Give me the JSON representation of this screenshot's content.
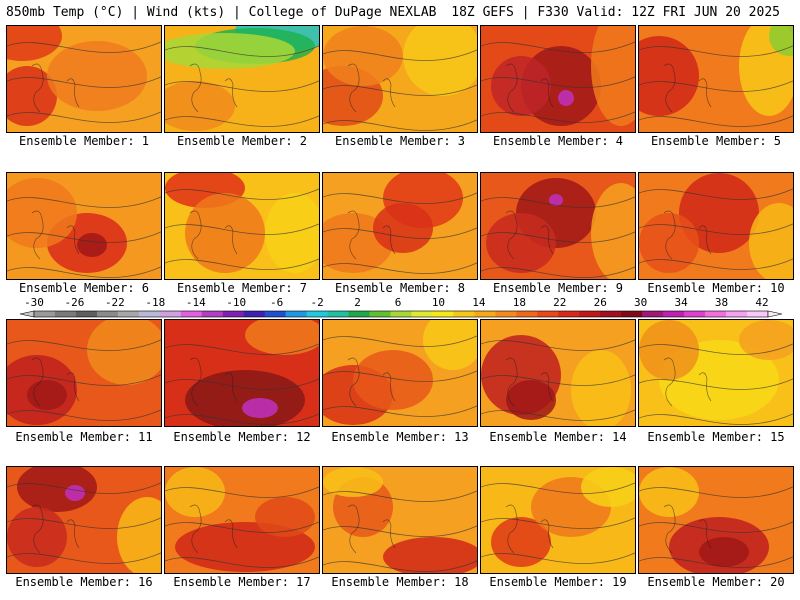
{
  "header": {
    "left": "850mb Temp (°C) | Wind (kts) | College of DuPage NEXLAB",
    "right": "18Z GEFS | F330 Valid: 12Z FRI JUN 20 2025"
  },
  "caption_prefix": "Ensemble Member:",
  "members": [
    {
      "label": "Ensemble Member: 1",
      "base": "#f5a020",
      "blobs": [
        [
          "#e03a18",
          15,
          10,
          40,
          25
        ],
        [
          "#d9301a",
          20,
          70,
          30,
          30
        ],
        [
          "#f07a1e",
          90,
          50,
          50,
          35
        ]
      ]
    },
    {
      "label": "Ensemble Member: 2",
      "base": "#f7b21a",
      "blobs": [
        [
          "#1ec2c8",
          120,
          5,
          50,
          20
        ],
        [
          "#20b050",
          90,
          20,
          60,
          18
        ],
        [
          "#a8d838",
          60,
          25,
          70,
          18
        ],
        [
          "#f08a1c",
          30,
          80,
          40,
          25
        ]
      ]
    },
    {
      "label": "Ensemble Member: 3",
      "base": "#f5a81c",
      "blobs": [
        [
          "#e04a18",
          20,
          70,
          40,
          30
        ],
        [
          "#f0801c",
          40,
          30,
          40,
          30
        ],
        [
          "#f8c818",
          120,
          30,
          40,
          40
        ]
      ]
    },
    {
      "label": "Ensemble Member: 4",
      "base": "#e44a18",
      "blobs": [
        [
          "#a01818",
          80,
          60,
          40,
          40
        ],
        [
          "#c02428",
          40,
          60,
          30,
          30
        ],
        [
          "#c030c0",
          85,
          72,
          8,
          8
        ],
        [
          "#f07a1c",
          140,
          40,
          30,
          60
        ]
      ]
    },
    {
      "label": "Ensemble Member: 5",
      "base": "#f07a1c",
      "blobs": [
        [
          "#d02818",
          20,
          50,
          40,
          40
        ],
        [
          "#f8c818",
          130,
          40,
          30,
          50
        ],
        [
          "#8ccc30",
          150,
          10,
          20,
          20
        ]
      ]
    },
    {
      "label": "Ensemble Member: 6",
      "base": "#f59820",
      "blobs": [
        [
          "#d82a1a",
          80,
          70,
          40,
          30
        ],
        [
          "#a01818",
          85,
          72,
          15,
          12
        ],
        [
          "#f0781c",
          30,
          40,
          40,
          35
        ]
      ]
    },
    {
      "label": "Ensemble Member: 7",
      "base": "#f8c018",
      "blobs": [
        [
          "#e03018",
          40,
          15,
          40,
          20
        ],
        [
          "#f0781c",
          60,
          60,
          40,
          40
        ],
        [
          "#f8d018",
          130,
          60,
          30,
          40
        ]
      ]
    },
    {
      "label": "Ensemble Member: 8",
      "base": "#f5a020",
      "blobs": [
        [
          "#e03818",
          100,
          25,
          40,
          30
        ],
        [
          "#f0781c",
          30,
          70,
          40,
          30
        ],
        [
          "#d83018",
          80,
          55,
          30,
          25
        ]
      ]
    },
    {
      "label": "Ensemble Member: 9",
      "base": "#e8581a",
      "blobs": [
        [
          "#a01818",
          75,
          40,
          40,
          35
        ],
        [
          "#c030c0",
          75,
          27,
          7,
          6
        ],
        [
          "#c82a20",
          40,
          70,
          35,
          30
        ],
        [
          "#f5a020",
          140,
          60,
          30,
          50
        ]
      ]
    },
    {
      "label": "Ensemble Member: 10",
      "base": "#f07a1c",
      "blobs": [
        [
          "#d02818",
          80,
          40,
          40,
          40
        ],
        [
          "#e8501a",
          30,
          70,
          30,
          30
        ],
        [
          "#f8b818",
          140,
          70,
          30,
          40
        ]
      ]
    },
    {
      "label": "Ensemble Member: 11",
      "base": "#e8581a",
      "blobs": [
        [
          "#c02020",
          30,
          70,
          40,
          35
        ],
        [
          "#a01818",
          40,
          75,
          20,
          15
        ],
        [
          "#f08a1c",
          120,
          30,
          40,
          35
        ]
      ]
    },
    {
      "label": "Ensemble Member: 12",
      "base": "#d83018",
      "blobs": [
        [
          "#8a1818",
          80,
          80,
          60,
          30
        ],
        [
          "#c030c0",
          95,
          88,
          18,
          10
        ],
        [
          "#f07a1c",
          120,
          15,
          40,
          20
        ]
      ]
    },
    {
      "label": "Ensemble Member: 13",
      "base": "#f5a020",
      "blobs": [
        [
          "#d83018",
          30,
          75,
          40,
          30
        ],
        [
          "#e8581a",
          70,
          60,
          40,
          30
        ],
        [
          "#f8c818",
          130,
          20,
          30,
          30
        ]
      ]
    },
    {
      "label": "Ensemble Member: 14",
      "base": "#f5a020",
      "blobs": [
        [
          "#c02020",
          40,
          55,
          40,
          40
        ],
        [
          "#a01818",
          50,
          80,
          25,
          20
        ],
        [
          "#f8c018",
          120,
          70,
          30,
          40
        ]
      ]
    },
    {
      "label": "Ensemble Member: 15",
      "base": "#f8c018",
      "blobs": [
        [
          "#f8d818",
          80,
          60,
          60,
          40
        ],
        [
          "#f0901c",
          30,
          30,
          30,
          30
        ],
        [
          "#f5a020",
          130,
          20,
          30,
          20
        ]
      ]
    },
    {
      "label": "Ensemble Member: 16",
      "base": "#e8581a",
      "blobs": [
        [
          "#a01818",
          50,
          20,
          40,
          25
        ],
        [
          "#c030c0",
          68,
          26,
          10,
          8
        ],
        [
          "#c82a20",
          30,
          70,
          30,
          30
        ],
        [
          "#f8b818",
          140,
          70,
          30,
          40
        ]
      ]
    },
    {
      "label": "Ensemble Member: 17",
      "base": "#f07a1c",
      "blobs": [
        [
          "#d02818",
          80,
          80,
          70,
          25
        ],
        [
          "#f8b818",
          30,
          25,
          30,
          25
        ],
        [
          "#e04a18",
          120,
          50,
          30,
          20
        ]
      ]
    },
    {
      "label": "Ensemble Member: 18",
      "base": "#f5a020",
      "blobs": [
        [
          "#d02818",
          110,
          90,
          50,
          20
        ],
        [
          "#e8581a",
          40,
          40,
          30,
          30
        ],
        [
          "#f8c018",
          30,
          15,
          30,
          15
        ]
      ]
    },
    {
      "label": "Ensemble Member: 19",
      "base": "#f8b818",
      "blobs": [
        [
          "#e03818",
          40,
          75,
          30,
          25
        ],
        [
          "#f0781c",
          90,
          40,
          40,
          30
        ],
        [
          "#f8d018",
          130,
          20,
          30,
          20
        ]
      ]
    },
    {
      "label": "Ensemble Member: 20",
      "base": "#f07a1c",
      "blobs": [
        [
          "#c02020",
          80,
          80,
          50,
          30
        ],
        [
          "#a01818",
          85,
          85,
          25,
          15
        ],
        [
          "#f8c018",
          30,
          25,
          30,
          25
        ]
      ]
    }
  ],
  "colorbar": {
    "labels": [
      "-30",
      "-26",
      "-22",
      "-18",
      "-14",
      "-10",
      "-6",
      "-2",
      "2",
      "6",
      "10",
      "14",
      "18",
      "22",
      "26",
      "30",
      "34",
      "38",
      "42"
    ],
    "colors": [
      "#9a9a9a",
      "#7a7a7a",
      "#5e5e5e",
      "#8a8a8a",
      "#a8a8a8",
      "#b8b8d8",
      "#d0a0e0",
      "#e060e0",
      "#b040c0",
      "#8020b0",
      "#4020b0",
      "#2050d0",
      "#2098e0",
      "#20c8e0",
      "#20c0a0",
      "#20a848",
      "#60c030",
      "#a8d838",
      "#e0e830",
      "#f8e818",
      "#f8c818",
      "#f8a818",
      "#f58a1c",
      "#f0681c",
      "#e8481a",
      "#d82a1a",
      "#c01818",
      "#a01020",
      "#800818",
      "#a01878",
      "#c020b0",
      "#e040d0",
      "#f070e0",
      "#f8a0f0",
      "#f8c8f8"
    ]
  }
}
